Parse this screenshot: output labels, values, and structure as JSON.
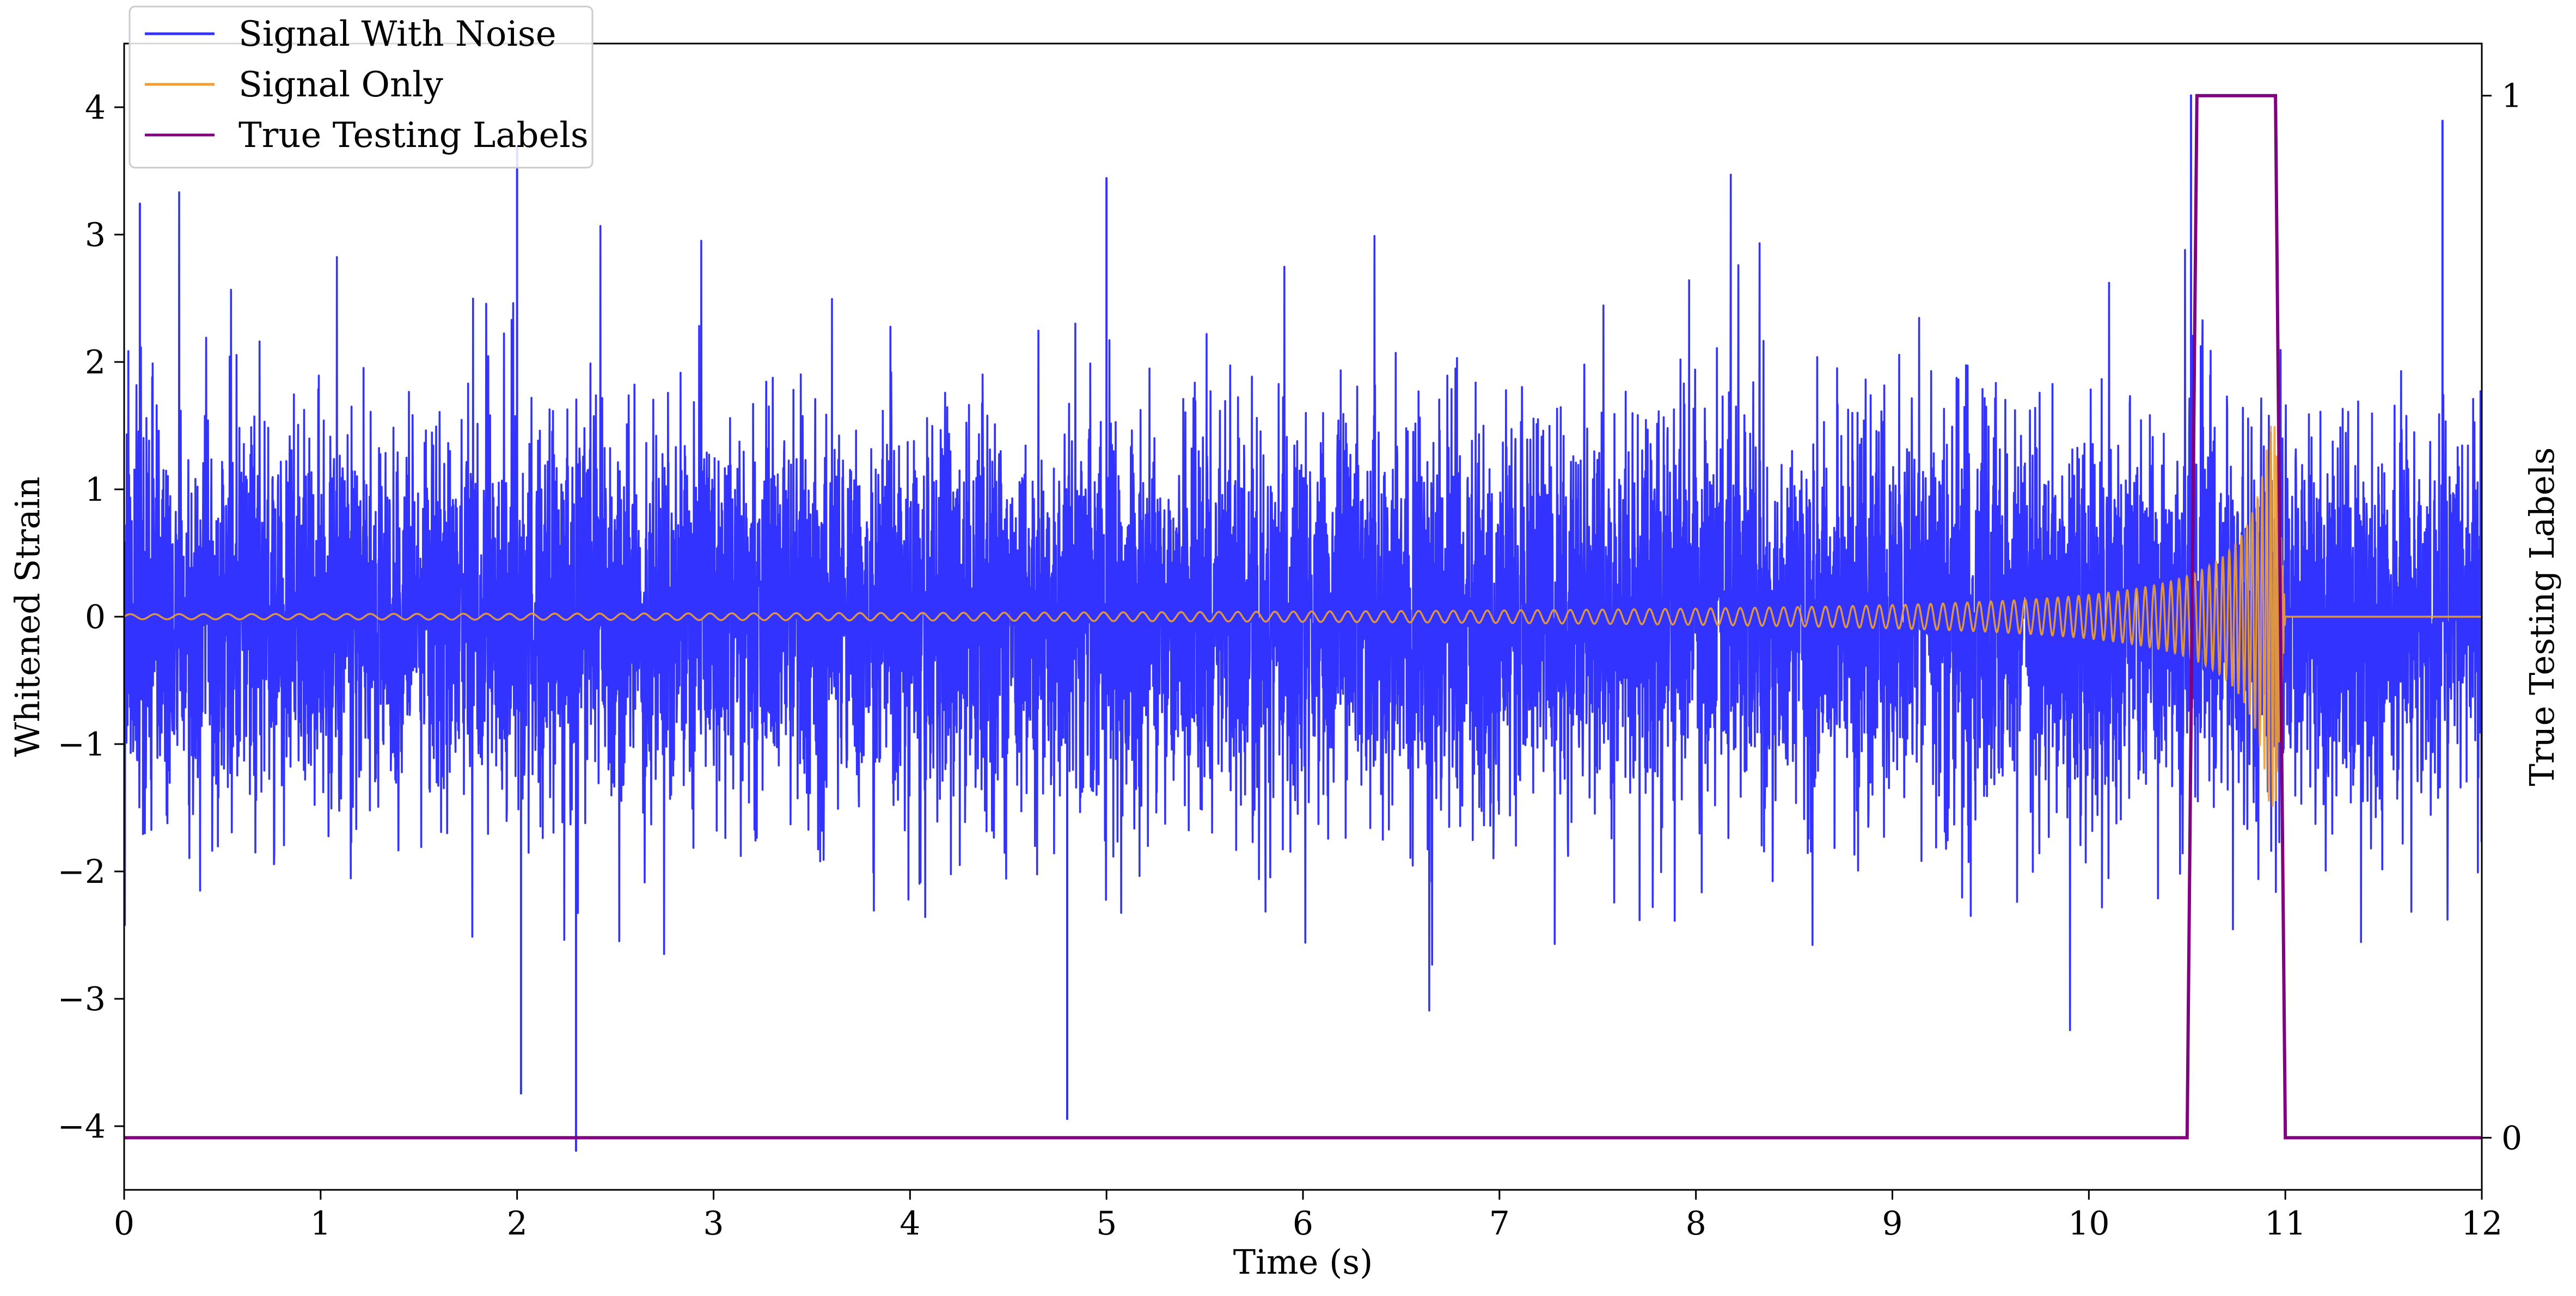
{
  "chart_data": {
    "type": "line",
    "title": "",
    "xlabel": "Time (s)",
    "ylabel": "Whitened Strain",
    "y2label": "True Testing Labels",
    "xlim": [
      0,
      12
    ],
    "ylim": [
      -4.5,
      4.5
    ],
    "y2lim": [
      -0.05,
      1.05
    ],
    "x_ticks": [
      0,
      1,
      2,
      3,
      4,
      5,
      6,
      7,
      8,
      9,
      10,
      11,
      12
    ],
    "y_ticks": [
      -4,
      -3,
      -2,
      -1,
      0,
      1,
      2,
      3,
      4
    ],
    "y2_ticks": [
      0,
      1
    ],
    "y_tick_labels": [
      "−4",
      "−3",
      "−2",
      "−1",
      "0",
      "1",
      "2",
      "3",
      "4"
    ],
    "grid": false,
    "legend_position": "top-left",
    "series": [
      {
        "name": "Signal With Noise",
        "color": "#3333ff",
        "axis": "left",
        "description_values": {
          "mean": 0,
          "std": 0.75,
          "max": 4.1,
          "min": -4.2
        },
        "extrema": [
          {
            "x": 0.08,
            "y": 3.25
          },
          {
            "x": 2.0,
            "y": 3.7
          },
          {
            "x": 2.02,
            "y": -3.75
          },
          {
            "x": 2.3,
            "y": -4.2
          },
          {
            "x": 4.8,
            "y": -3.95
          },
          {
            "x": 5.0,
            "y": 3.45
          },
          {
            "x": 10.52,
            "y": 4.1
          },
          {
            "x": 11.8,
            "y": 3.9
          }
        ]
      },
      {
        "name": "Signal Only",
        "color": "#f0a030",
        "axis": "left",
        "chirp": {
          "t_start": 0,
          "t_merge": 10.95,
          "t_ringdown_end": 11.0,
          "amplitude_start": 0.02,
          "amplitude_peak": 1.5,
          "frequency_start_hz": 8
        }
      },
      {
        "name": "True Testing Labels",
        "color": "#800080",
        "axis": "right",
        "x": [
          0,
          10.5,
          10.55,
          10.95,
          11.0,
          12.0
        ],
        "y": [
          0,
          0,
          1,
          1,
          0,
          0
        ]
      }
    ]
  }
}
